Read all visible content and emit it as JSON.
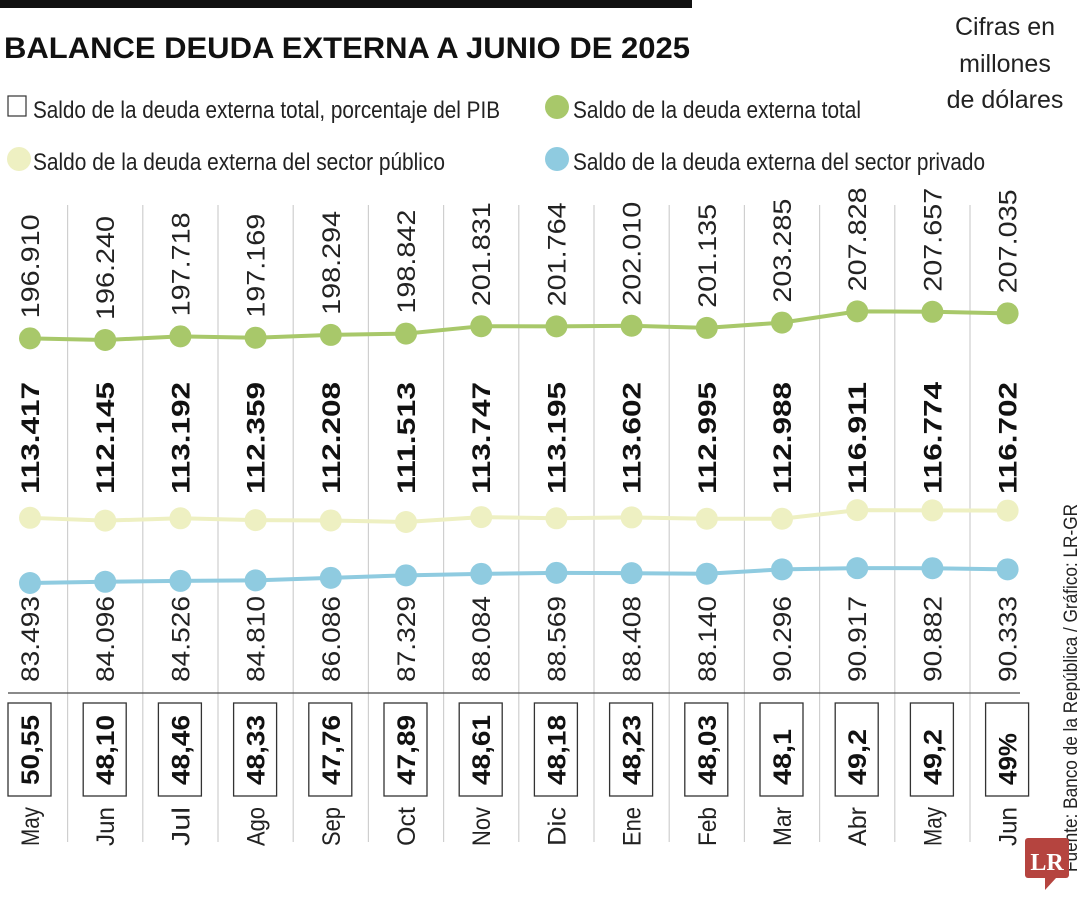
{
  "chart_data": {
    "type": "line",
    "title": "BALANCE DEUDA EXTERNA A JUNIO DE 2025",
    "units_note": [
      "Cifras en",
      "millones",
      "de dólares"
    ],
    "source": "Fuente: Banco de la República / Gráfico: LR-GR",
    "logo": "LR",
    "categories": [
      "May",
      "Jun",
      "Jul",
      "Ago",
      "Sep",
      "Oct",
      "Nov",
      "Dic",
      "Ene",
      "Feb",
      "Mar",
      "Abr",
      "May",
      "Jun"
    ],
    "legend": {
      "pib": "Saldo de la deuda externa total, porcentaje del PIB",
      "total": "Saldo de la deuda externa total",
      "publico": "Saldo de la deuda externa del sector público",
      "privado": "Saldo de la deuda externa del sector privado"
    },
    "series": [
      {
        "name": "Saldo de la deuda externa total",
        "color": "#a8c86a",
        "labels": [
          "196.910",
          "196.240",
          "197.718",
          "197.169",
          "198.294",
          "198.842",
          "201.831",
          "201.764",
          "202.010",
          "201.135",
          "203.285",
          "207.828",
          "207.657",
          "207.035"
        ],
        "values": [
          196910,
          196240,
          197718,
          197169,
          198294,
          198842,
          201831,
          201764,
          202010,
          201135,
          203285,
          207828,
          207657,
          207035
        ]
      },
      {
        "name": "Saldo de la deuda externa del sector público",
        "color": "#eef0c2",
        "labels": [
          "113.417",
          "112.145",
          "113.192",
          "112.359",
          "112.208",
          "111.513",
          "113.747",
          "113.195",
          "113.602",
          "112.995",
          "112.988",
          "116.911",
          "116.774",
          "116.702"
        ],
        "values": [
          113417,
          112145,
          113192,
          112359,
          112208,
          111513,
          113747,
          113195,
          113602,
          112995,
          112988,
          116911,
          116774,
          116702
        ]
      },
      {
        "name": "Saldo de la deuda externa del sector privado",
        "color": "#8fcbe0",
        "labels": [
          "83.493",
          "84.096",
          "84.526",
          "84.810",
          "86.086",
          "87.329",
          "88.084",
          "88.569",
          "88.408",
          "88.140",
          "90.296",
          "90.917",
          "90.882",
          "90.333"
        ],
        "values": [
          83493,
          84096,
          84526,
          84810,
          86086,
          87329,
          88084,
          88569,
          88408,
          88140,
          90296,
          90917,
          90882,
          90333
        ]
      }
    ],
    "pib_percent": {
      "name": "Saldo de la deuda externa total, porcentaje del PIB",
      "labels": [
        "50,55",
        "48,10",
        "48,46",
        "48,33",
        "47,76",
        "47,89",
        "48,61",
        "48,18",
        "48,23",
        "48,03",
        "48,1",
        "49,2",
        "49,2",
        "49%"
      ],
      "values": [
        50.55,
        48.1,
        48.46,
        48.33,
        47.76,
        47.89,
        48.61,
        48.18,
        48.23,
        48.03,
        48.1,
        49.2,
        49.2,
        49
      ]
    }
  }
}
